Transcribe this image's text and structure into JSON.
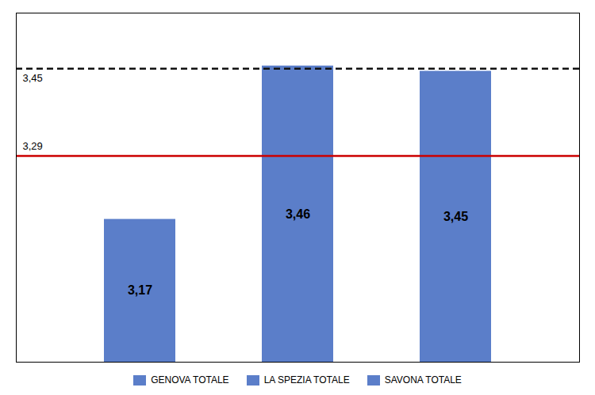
{
  "chart_data": {
    "type": "bar",
    "categories": [
      "GENOVA TOTALE",
      "LA SPEZIA TOTALE",
      "SAVONA TOTALE"
    ],
    "values": [
      3.17,
      3.46,
      3.45
    ],
    "value_labels": [
      "3,17",
      "3,46",
      "3,45"
    ],
    "data_labels": true,
    "color": "#5B7EC9",
    "ylim": [
      2.9,
      3.56
    ],
    "yticks": [],
    "tick_labels": false,
    "legend": "bottom",
    "annotations": [
      {
        "type": "hline",
        "y": 3.455,
        "label": "3,45",
        "color": "#111111",
        "line_style": "dashed"
      },
      {
        "type": "hline",
        "y": 3.29,
        "label": "3,29",
        "color": "#CC0000",
        "line_style": "solid"
      }
    ]
  }
}
